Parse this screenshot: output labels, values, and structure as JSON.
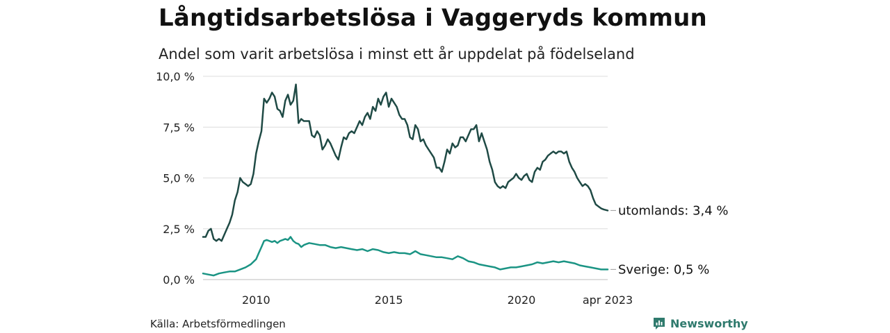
{
  "title": "Långtidsarbetslösa i Vaggeryds kommun",
  "subtitle": "Andel som varit arbetslösa i minst ett år uppdelat på födelseland",
  "source": "Källa: Arbetsförmedlingen",
  "brand": "Newsworthy",
  "colors": {
    "utomlands": "#1f4a45",
    "sverige": "#1b9484",
    "grid": "#dcdcdc",
    "brand": "#2f7a6d"
  },
  "chart_data": {
    "type": "line",
    "x_unit": "year",
    "xlim": [
      2008.0,
      2023.25
    ],
    "ylim": [
      0,
      10
    ],
    "y_ticks": [
      {
        "value": 0,
        "label": "0,0 %"
      },
      {
        "value": 2.5,
        "label": "2,5 %"
      },
      {
        "value": 5,
        "label": "5,0 %"
      },
      {
        "value": 7.5,
        "label": "7,5 %"
      },
      {
        "value": 10,
        "label": "10,0 %"
      }
    ],
    "x_ticks": [
      {
        "value": 2010,
        "label": "2010"
      },
      {
        "value": 2015,
        "label": "2015"
      },
      {
        "value": 2020,
        "label": "2020"
      },
      {
        "value": 2023.25,
        "label": "apr 2023"
      }
    ],
    "grid": true,
    "series": [
      {
        "name": "utomlands",
        "end_label": "utomlands: 3,4 %",
        "points": [
          [
            2008.0,
            2.1
          ],
          [
            2008.1,
            2.1
          ],
          [
            2008.2,
            2.4
          ],
          [
            2008.3,
            2.5
          ],
          [
            2008.4,
            2.0
          ],
          [
            2008.5,
            1.9
          ],
          [
            2008.6,
            2.0
          ],
          [
            2008.7,
            1.9
          ],
          [
            2008.8,
            2.2
          ],
          [
            2008.9,
            2.5
          ],
          [
            2009.0,
            2.8
          ],
          [
            2009.1,
            3.2
          ],
          [
            2009.2,
            3.9
          ],
          [
            2009.3,
            4.3
          ],
          [
            2009.4,
            5.0
          ],
          [
            2009.5,
            4.8
          ],
          [
            2009.6,
            4.7
          ],
          [
            2009.7,
            4.6
          ],
          [
            2009.8,
            4.7
          ],
          [
            2009.9,
            5.2
          ],
          [
            2010.0,
            6.2
          ],
          [
            2010.1,
            6.8
          ],
          [
            2010.2,
            7.3
          ],
          [
            2010.3,
            8.9
          ],
          [
            2010.4,
            8.7
          ],
          [
            2010.5,
            8.9
          ],
          [
            2010.6,
            9.2
          ],
          [
            2010.7,
            9.0
          ],
          [
            2010.8,
            8.4
          ],
          [
            2010.9,
            8.3
          ],
          [
            2011.0,
            8.0
          ],
          [
            2011.1,
            8.8
          ],
          [
            2011.2,
            9.1
          ],
          [
            2011.3,
            8.6
          ],
          [
            2011.4,
            8.8
          ],
          [
            2011.5,
            9.6
          ],
          [
            2011.6,
            7.7
          ],
          [
            2011.7,
            7.9
          ],
          [
            2011.8,
            7.8
          ],
          [
            2011.9,
            7.8
          ],
          [
            2012.0,
            7.8
          ],
          [
            2012.1,
            7.1
          ],
          [
            2012.2,
            7.0
          ],
          [
            2012.3,
            7.3
          ],
          [
            2012.4,
            7.1
          ],
          [
            2012.5,
            6.4
          ],
          [
            2012.6,
            6.6
          ],
          [
            2012.7,
            6.9
          ],
          [
            2012.8,
            6.7
          ],
          [
            2012.9,
            6.4
          ],
          [
            2013.0,
            6.1
          ],
          [
            2013.1,
            5.9
          ],
          [
            2013.2,
            6.5
          ],
          [
            2013.3,
            7.0
          ],
          [
            2013.4,
            6.9
          ],
          [
            2013.5,
            7.2
          ],
          [
            2013.6,
            7.3
          ],
          [
            2013.7,
            7.2
          ],
          [
            2013.8,
            7.5
          ],
          [
            2013.9,
            7.8
          ],
          [
            2014.0,
            7.6
          ],
          [
            2014.1,
            8.0
          ],
          [
            2014.2,
            8.2
          ],
          [
            2014.3,
            7.9
          ],
          [
            2014.4,
            8.5
          ],
          [
            2014.5,
            8.3
          ],
          [
            2014.6,
            8.9
          ],
          [
            2014.7,
            8.6
          ],
          [
            2014.8,
            9.0
          ],
          [
            2014.9,
            9.2
          ],
          [
            2015.0,
            8.5
          ],
          [
            2015.1,
            8.9
          ],
          [
            2015.2,
            8.7
          ],
          [
            2015.3,
            8.5
          ],
          [
            2015.4,
            8.1
          ],
          [
            2015.5,
            7.9
          ],
          [
            2015.6,
            7.9
          ],
          [
            2015.7,
            7.6
          ],
          [
            2015.8,
            7.0
          ],
          [
            2015.9,
            6.9
          ],
          [
            2016.0,
            7.6
          ],
          [
            2016.1,
            7.4
          ],
          [
            2016.2,
            6.8
          ],
          [
            2016.3,
            6.9
          ],
          [
            2016.4,
            6.6
          ],
          [
            2016.5,
            6.4
          ],
          [
            2016.6,
            6.2
          ],
          [
            2016.7,
            6.0
          ],
          [
            2016.8,
            5.5
          ],
          [
            2016.9,
            5.5
          ],
          [
            2017.0,
            5.3
          ],
          [
            2017.1,
            5.8
          ],
          [
            2017.2,
            6.4
          ],
          [
            2017.3,
            6.2
          ],
          [
            2017.4,
            6.7
          ],
          [
            2017.5,
            6.5
          ],
          [
            2017.6,
            6.6
          ],
          [
            2017.7,
            7.0
          ],
          [
            2017.8,
            7.0
          ],
          [
            2017.9,
            6.8
          ],
          [
            2018.0,
            7.1
          ],
          [
            2018.1,
            7.4
          ],
          [
            2018.2,
            7.4
          ],
          [
            2018.3,
            7.6
          ],
          [
            2018.4,
            6.8
          ],
          [
            2018.5,
            7.2
          ],
          [
            2018.6,
            6.8
          ],
          [
            2018.7,
            6.4
          ],
          [
            2018.8,
            5.8
          ],
          [
            2018.9,
            5.4
          ],
          [
            2019.0,
            4.8
          ],
          [
            2019.1,
            4.6
          ],
          [
            2019.2,
            4.5
          ],
          [
            2019.3,
            4.6
          ],
          [
            2019.4,
            4.5
          ],
          [
            2019.5,
            4.8
          ],
          [
            2019.6,
            4.9
          ],
          [
            2019.7,
            5.0
          ],
          [
            2019.8,
            5.2
          ],
          [
            2019.9,
            5.0
          ],
          [
            2020.0,
            4.9
          ],
          [
            2020.1,
            5.1
          ],
          [
            2020.2,
            5.2
          ],
          [
            2020.3,
            4.9
          ],
          [
            2020.4,
            4.8
          ],
          [
            2020.5,
            5.3
          ],
          [
            2020.6,
            5.5
          ],
          [
            2020.7,
            5.4
          ],
          [
            2020.8,
            5.8
          ],
          [
            2020.9,
            5.9
          ],
          [
            2021.0,
            6.1
          ],
          [
            2021.1,
            6.2
          ],
          [
            2021.2,
            6.3
          ],
          [
            2021.3,
            6.2
          ],
          [
            2021.4,
            6.3
          ],
          [
            2021.5,
            6.3
          ],
          [
            2021.6,
            6.2
          ],
          [
            2021.7,
            6.3
          ],
          [
            2021.8,
            5.8
          ],
          [
            2021.9,
            5.5
          ],
          [
            2022.0,
            5.3
          ],
          [
            2022.1,
            5.0
          ],
          [
            2022.2,
            4.8
          ],
          [
            2022.3,
            4.6
          ],
          [
            2022.4,
            4.7
          ],
          [
            2022.5,
            4.6
          ],
          [
            2022.6,
            4.4
          ],
          [
            2022.7,
            4.0
          ],
          [
            2022.8,
            3.7
          ],
          [
            2022.9,
            3.6
          ],
          [
            2023.0,
            3.5
          ],
          [
            2023.1,
            3.45
          ],
          [
            2023.25,
            3.4
          ]
        ]
      },
      {
        "name": "Sverige",
        "end_label": "Sverige: 0,5 %",
        "points": [
          [
            2008.0,
            0.3
          ],
          [
            2008.2,
            0.25
          ],
          [
            2008.4,
            0.2
          ],
          [
            2008.6,
            0.3
          ],
          [
            2008.8,
            0.35
          ],
          [
            2009.0,
            0.4
          ],
          [
            2009.2,
            0.4
          ],
          [
            2009.4,
            0.5
          ],
          [
            2009.6,
            0.6
          ],
          [
            2009.8,
            0.75
          ],
          [
            2010.0,
            1.0
          ],
          [
            2010.1,
            1.3
          ],
          [
            2010.2,
            1.6
          ],
          [
            2010.3,
            1.9
          ],
          [
            2010.4,
            1.95
          ],
          [
            2010.5,
            1.9
          ],
          [
            2010.6,
            1.85
          ],
          [
            2010.7,
            1.9
          ],
          [
            2010.8,
            1.8
          ],
          [
            2010.9,
            1.9
          ],
          [
            2011.0,
            1.95
          ],
          [
            2011.1,
            2.0
          ],
          [
            2011.2,
            1.95
          ],
          [
            2011.3,
            2.1
          ],
          [
            2011.4,
            1.9
          ],
          [
            2011.5,
            1.8
          ],
          [
            2011.6,
            1.75
          ],
          [
            2011.7,
            1.6
          ],
          [
            2011.8,
            1.7
          ],
          [
            2011.9,
            1.75
          ],
          [
            2012.0,
            1.8
          ],
          [
            2012.2,
            1.75
          ],
          [
            2012.4,
            1.7
          ],
          [
            2012.6,
            1.7
          ],
          [
            2012.8,
            1.6
          ],
          [
            2013.0,
            1.55
          ],
          [
            2013.2,
            1.6
          ],
          [
            2013.4,
            1.55
          ],
          [
            2013.6,
            1.5
          ],
          [
            2013.8,
            1.45
          ],
          [
            2014.0,
            1.5
          ],
          [
            2014.2,
            1.4
          ],
          [
            2014.4,
            1.5
          ],
          [
            2014.6,
            1.45
          ],
          [
            2014.8,
            1.35
          ],
          [
            2015.0,
            1.3
          ],
          [
            2015.2,
            1.35
          ],
          [
            2015.4,
            1.3
          ],
          [
            2015.6,
            1.3
          ],
          [
            2015.8,
            1.25
          ],
          [
            2016.0,
            1.4
          ],
          [
            2016.2,
            1.25
          ],
          [
            2016.4,
            1.2
          ],
          [
            2016.6,
            1.15
          ],
          [
            2016.8,
            1.1
          ],
          [
            2017.0,
            1.1
          ],
          [
            2017.2,
            1.05
          ],
          [
            2017.4,
            1.0
          ],
          [
            2017.6,
            1.15
          ],
          [
            2017.8,
            1.05
          ],
          [
            2018.0,
            0.9
          ],
          [
            2018.2,
            0.85
          ],
          [
            2018.4,
            0.75
          ],
          [
            2018.6,
            0.7
          ],
          [
            2018.8,
            0.65
          ],
          [
            2019.0,
            0.6
          ],
          [
            2019.2,
            0.5
          ],
          [
            2019.4,
            0.55
          ],
          [
            2019.6,
            0.6
          ],
          [
            2019.8,
            0.6
          ],
          [
            2020.0,
            0.65
          ],
          [
            2020.2,
            0.7
          ],
          [
            2020.4,
            0.75
          ],
          [
            2020.6,
            0.85
          ],
          [
            2020.8,
            0.8
          ],
          [
            2021.0,
            0.85
          ],
          [
            2021.2,
            0.9
          ],
          [
            2021.4,
            0.85
          ],
          [
            2021.6,
            0.9
          ],
          [
            2021.8,
            0.85
          ],
          [
            2022.0,
            0.8
          ],
          [
            2022.2,
            0.7
          ],
          [
            2022.4,
            0.65
          ],
          [
            2022.6,
            0.6
          ],
          [
            2022.8,
            0.55
          ],
          [
            2023.0,
            0.5
          ],
          [
            2023.25,
            0.5
          ]
        ]
      }
    ]
  }
}
